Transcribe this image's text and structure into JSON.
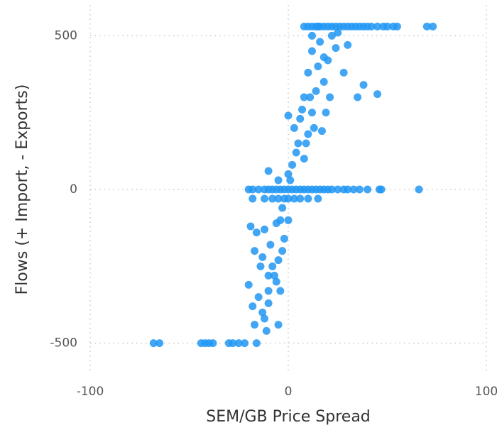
{
  "chart_data": {
    "type": "scatter",
    "x_label": "SEM/GB Price Spread",
    "y_label": "Flows (+ Import, - Exports)",
    "xlim": [
      -100,
      100
    ],
    "ylim": [
      -600,
      600
    ],
    "xticks": [
      -100,
      0,
      100
    ],
    "yticks": [
      -500,
      0,
      500
    ],
    "grid": true,
    "series": [
      {
        "name": "Flows",
        "color": "#2196f3",
        "x": [
          8,
          10,
          12,
          14,
          15,
          16,
          18,
          20,
          22,
          24,
          26,
          28,
          30,
          32,
          34,
          36,
          38,
          40,
          42,
          45,
          48,
          50,
          53,
          55,
          70,
          73,
          -20,
          -18,
          -15,
          -12,
          -10,
          -8,
          -6,
          -4,
          -2,
          0,
          2,
          4,
          6,
          8,
          10,
          12,
          14,
          16,
          18,
          20,
          22,
          25,
          28,
          30,
          33,
          36,
          40,
          46,
          47,
          66,
          -18,
          -12,
          -8,
          -5,
          -2,
          0,
          3,
          6,
          10,
          15,
          -68,
          -65,
          -44,
          -42,
          -40,
          -38,
          -30,
          -28,
          -25,
          -22,
          -16,
          -20,
          -18,
          -17,
          -15,
          -13,
          -11,
          -10,
          -12,
          -14,
          -17,
          -19,
          -16,
          -12,
          -9,
          -8,
          -6,
          -5,
          -4,
          -3,
          -2,
          -4,
          -6,
          -3,
          0,
          -10,
          -13,
          -10,
          -5,
          -7,
          0,
          2,
          4,
          5,
          3,
          6,
          1,
          8,
          10,
          12,
          8,
          14,
          10,
          15,
          12,
          18,
          20,
          16,
          22,
          24,
          11,
          13,
          7,
          9,
          19,
          17,
          21,
          25,
          28,
          35,
          38,
          45,
          -10,
          -5,
          0,
          12,
          30,
          18
        ],
        "values": [
          530,
          530,
          530,
          530,
          530,
          530,
          530,
          530,
          530,
          530,
          530,
          530,
          530,
          530,
          530,
          530,
          530,
          530,
          530,
          530,
          530,
          530,
          530,
          530,
          530,
          530,
          0,
          0,
          0,
          0,
          0,
          0,
          0,
          0,
          0,
          0,
          0,
          0,
          0,
          0,
          0,
          0,
          0,
          0,
          0,
          0,
          0,
          0,
          0,
          0,
          0,
          0,
          0,
          0,
          0,
          0,
          -30,
          -30,
          -30,
          -30,
          -30,
          -30,
          -30,
          -30,
          -30,
          -30,
          -500,
          -500,
          -500,
          -500,
          -500,
          -500,
          -500,
          -500,
          -500,
          -500,
          -500,
          -310,
          -380,
          -440,
          -350,
          -400,
          -460,
          -330,
          -420,
          -250,
          -200,
          -120,
          -140,
          -130,
          -180,
          -250,
          -300,
          -230,
          -330,
          -200,
          -160,
          -100,
          -110,
          -60,
          -100,
          -280,
          -220,
          -370,
          -440,
          -280,
          50,
          80,
          120,
          150,
          200,
          230,
          30,
          100,
          180,
          250,
          300,
          320,
          380,
          400,
          450,
          350,
          420,
          480,
          500,
          460,
          300,
          200,
          260,
          150,
          250,
          190,
          300,
          510,
          380,
          300,
          340,
          310,
          60,
          30,
          240,
          500,
          470,
          430
        ]
      }
    ]
  }
}
